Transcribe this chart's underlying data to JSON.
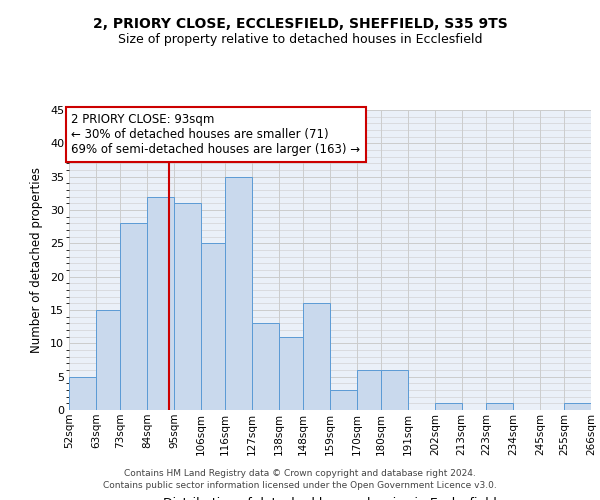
{
  "title1": "2, PRIORY CLOSE, ECCLESFIELD, SHEFFIELD, S35 9TS",
  "title2": "Size of property relative to detached houses in Ecclesfield",
  "xlabel": "Distribution of detached houses by size in Ecclesfield",
  "ylabel": "Number of detached properties",
  "bin_edges": [
    52,
    63,
    73,
    84,
    95,
    106,
    116,
    127,
    138,
    148,
    159,
    170,
    180,
    191,
    202,
    213,
    223,
    234,
    245,
    255,
    266
  ],
  "bin_labels": [
    "52sqm",
    "63sqm",
    "73sqm",
    "84sqm",
    "95sqm",
    "106sqm",
    "116sqm",
    "127sqm",
    "138sqm",
    "148sqm",
    "159sqm",
    "170sqm",
    "180sqm",
    "191sqm",
    "202sqm",
    "213sqm",
    "223sqm",
    "234sqm",
    "245sqm",
    "255sqm",
    "266sqm"
  ],
  "counts": [
    5,
    15,
    28,
    32,
    31,
    25,
    35,
    13,
    11,
    16,
    3,
    6,
    6,
    0,
    1,
    0,
    1,
    0,
    0,
    1
  ],
  "bar_facecolor": "#c9d9ed",
  "bar_edgecolor": "#5b9bd5",
  "grid_color": "#cccccc",
  "background_color": "#eaf0f8",
  "vline_x": 93,
  "vline_color": "#cc0000",
  "annotation_title": "2 PRIORY CLOSE: 93sqm",
  "annotation_line1": "← 30% of detached houses are smaller (71)",
  "annotation_line2": "69% of semi-detached houses are larger (163) →",
  "annotation_box_edgecolor": "#cc0000",
  "annotation_box_facecolor": "#ffffff",
  "ylim": [
    0,
    45
  ],
  "yticks": [
    0,
    5,
    10,
    15,
    20,
    25,
    30,
    35,
    40,
    45
  ],
  "footer1": "Contains HM Land Registry data © Crown copyright and database right 2024.",
  "footer2": "Contains public sector information licensed under the Open Government Licence v3.0."
}
